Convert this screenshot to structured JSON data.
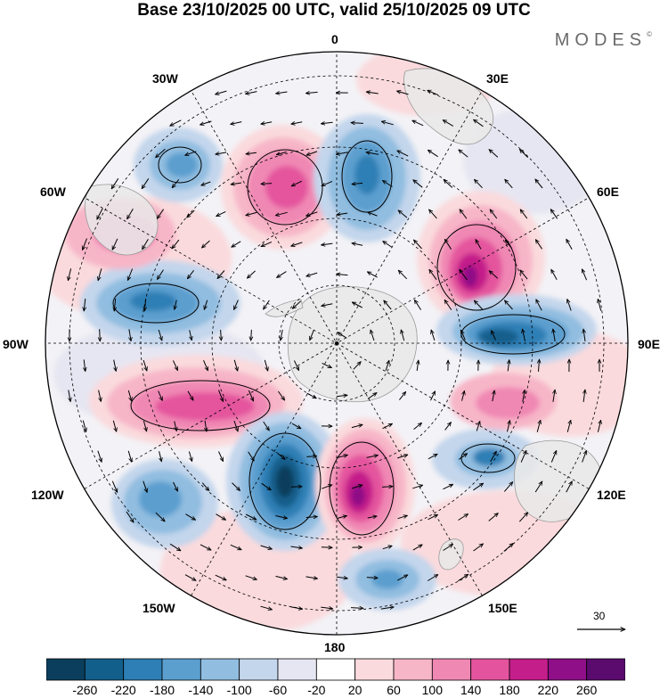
{
  "title": "Base 23/10/2025 00 UTC, valid 25/10/2025 09 UTC",
  "brand": "MODES",
  "brand_mark": "©",
  "longitude_labels": {
    "top": "0",
    "top_right": "30E",
    "upper_right": "60E",
    "right": "90E",
    "lower_right": "120E",
    "bottom_right": "150E",
    "bottom": "180",
    "bottom_left": "150W",
    "lower_left": "120W",
    "left": "90W",
    "upper_left": "60W",
    "top_left": "30W"
  },
  "reference_vector": {
    "value": "30"
  },
  "colorbar": {
    "colors": [
      "#0b3e5c",
      "#135f8c",
      "#2d7fb5",
      "#5b9fcf",
      "#91bde0",
      "#c3d6ec",
      "#e6e6f2",
      "#ffffff",
      "#fadadd",
      "#f7b6c8",
      "#f088b4",
      "#e4549e",
      "#c41e8a",
      "#8e0f87",
      "#5b0a6e"
    ],
    "ticks": [
      "-260",
      "-220",
      "-180",
      "-140",
      "-100",
      "-60",
      "-20",
      "20",
      "60",
      "100",
      "140",
      "180",
      "220",
      "260"
    ]
  },
  "field_colors": {
    "land": "#e9e9e9",
    "coast": "#9a9a9a",
    "grid": "#000000"
  }
}
